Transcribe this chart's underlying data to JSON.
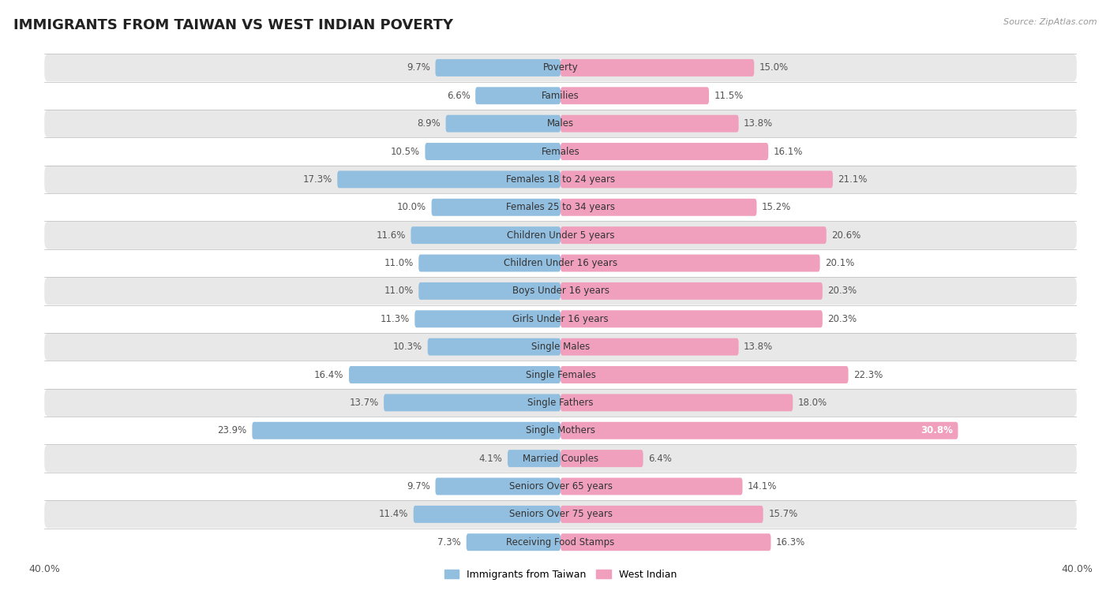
{
  "title": "IMMIGRANTS FROM TAIWAN VS WEST INDIAN POVERTY",
  "source": "Source: ZipAtlas.com",
  "categories": [
    "Poverty",
    "Families",
    "Males",
    "Females",
    "Females 18 to 24 years",
    "Females 25 to 34 years",
    "Children Under 5 years",
    "Children Under 16 years",
    "Boys Under 16 years",
    "Girls Under 16 years",
    "Single Males",
    "Single Females",
    "Single Fathers",
    "Single Mothers",
    "Married Couples",
    "Seniors Over 65 years",
    "Seniors Over 75 years",
    "Receiving Food Stamps"
  ],
  "taiwan_values": [
    9.7,
    6.6,
    8.9,
    10.5,
    17.3,
    10.0,
    11.6,
    11.0,
    11.0,
    11.3,
    10.3,
    16.4,
    13.7,
    23.9,
    4.1,
    9.7,
    11.4,
    7.3
  ],
  "west_indian_values": [
    15.0,
    11.5,
    13.8,
    16.1,
    21.1,
    15.2,
    20.6,
    20.1,
    20.3,
    20.3,
    13.8,
    22.3,
    18.0,
    30.8,
    6.4,
    14.1,
    15.7,
    16.3
  ],
  "taiwan_color": "#92bfdf",
  "west_indian_color": "#f0a0bc",
  "background_color": "#ffffff",
  "row_bg_odd": "#ffffff",
  "row_bg_even": "#e8e8e8",
  "bar_height": 0.62,
  "title_fontsize": 13,
  "label_fontsize": 8.5,
  "value_fontsize": 8.5,
  "legend_labels": [
    "Immigrants from Taiwan",
    "West Indian"
  ],
  "xlim": 40.0
}
